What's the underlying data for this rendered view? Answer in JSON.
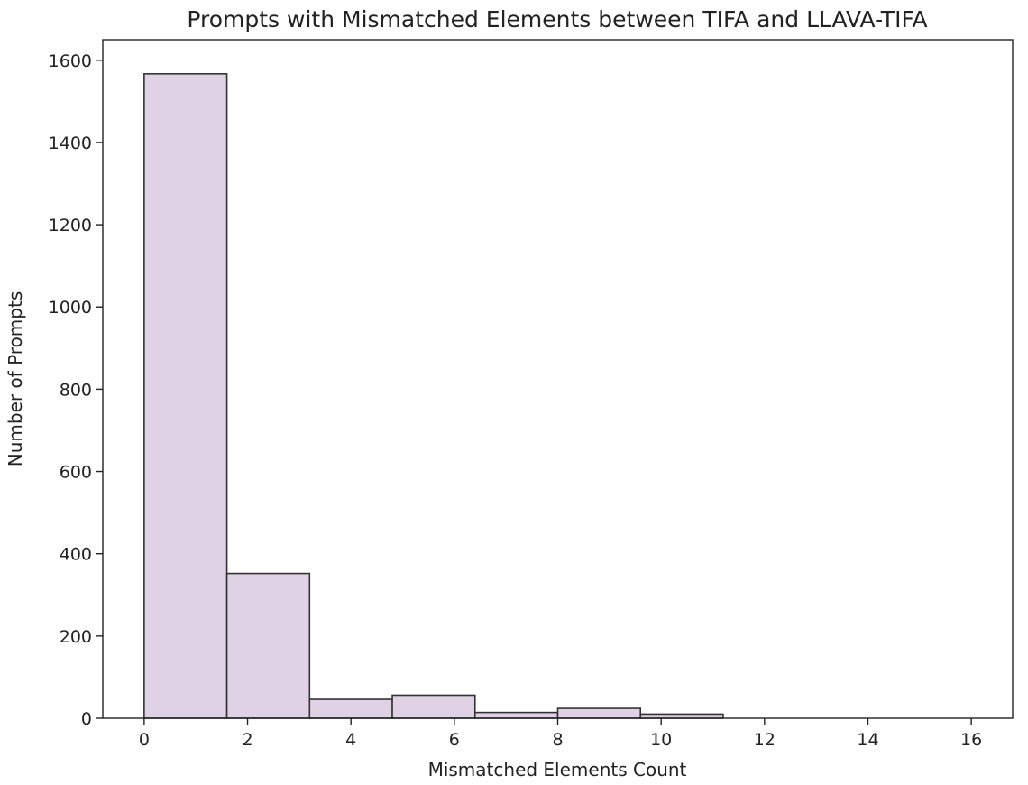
{
  "chart_data": {
    "type": "bar",
    "title": "Prompts with Mismatched Elements between TIFA and LLAVA-TIFA",
    "xlabel": "Mismatched Elements Count",
    "ylabel": "Number of Prompts",
    "xlim": [
      -0.8,
      16.8
    ],
    "ylim": [
      0,
      1650
    ],
    "xticks": [
      0,
      2,
      4,
      6,
      8,
      10,
      12,
      14,
      16
    ],
    "yticks": [
      0,
      200,
      400,
      600,
      800,
      1000,
      1200,
      1400,
      1600
    ],
    "bin_edges": [
      0,
      1.6,
      3.2,
      4.8,
      6.4,
      8.0,
      9.6,
      11.2,
      12.8,
      14.4,
      16.0
    ],
    "values": [
      1567,
      352,
      46,
      56,
      14,
      24,
      10,
      0,
      0,
      0
    ],
    "bar_color": "#e0d2e5",
    "edge_color": "#333333",
    "grid": false,
    "legend": "none"
  }
}
